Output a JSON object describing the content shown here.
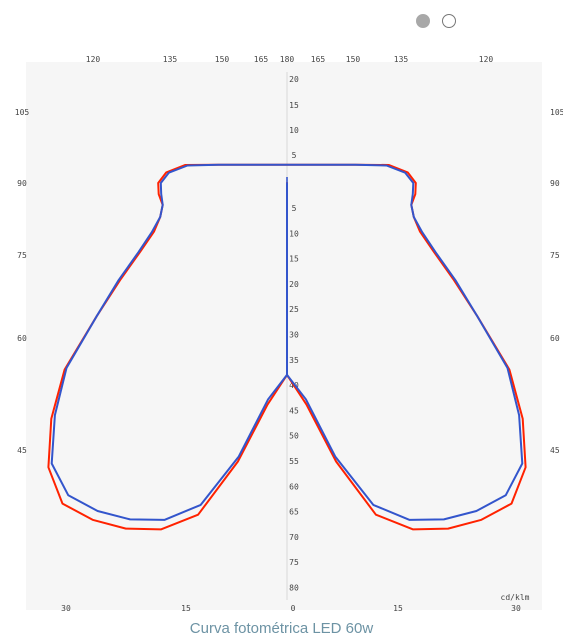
{
  "carousel": {
    "dots": [
      {
        "label": "slide-1",
        "active": true
      },
      {
        "label": "slide-2",
        "active": false
      }
    ]
  },
  "caption": "Curva fotométrica LED 60w",
  "chart_data": {
    "type": "polar",
    "unit_label": "cd/klm",
    "radial_axis": {
      "upper_ticks": [
        "20",
        "15",
        "10",
        "5"
      ],
      "lower_ticks": [
        "5",
        "10",
        "15",
        "20",
        "25",
        "30",
        "35",
        "40",
        "45",
        "50",
        "55",
        "60",
        "65",
        "70",
        "75",
        "80"
      ]
    },
    "top_angle_ticks": [
      "120",
      "135",
      "150",
      "165",
      "180",
      "165",
      "150",
      "135",
      "120"
    ],
    "side_angle_ticks_left": [
      "105",
      "90",
      "75",
      "60",
      "45"
    ],
    "side_angle_ticks_right": [
      "105",
      "90",
      "75",
      "60",
      "45"
    ],
    "bottom_angle_ticks": [
      "30",
      "15",
      "0",
      "15",
      "30"
    ],
    "series": [
      {
        "color": "#ff2200",
        "points": [
          [
            0,
            38
          ],
          [
            5,
            44
          ],
          [
            10,
            56
          ],
          [
            15,
            68
          ],
          [
            20,
            73
          ],
          [
            25,
            75.5
          ],
          [
            30,
            77
          ],
          [
            35,
            77.5
          ],
          [
            40,
            73.5
          ],
          [
            45,
            66
          ],
          [
            50,
            57.5
          ],
          [
            55,
            46
          ],
          [
            60,
            38
          ],
          [
            65,
            32
          ],
          [
            70,
            28
          ],
          [
            75,
            26
          ],
          [
            80,
            25
          ],
          [
            85,
            25.5
          ],
          [
            90,
            25.5
          ],
          [
            95,
            24
          ],
          [
            100,
            20.5
          ],
          [
            105,
            14
          ]
        ]
      },
      {
        "color": "#3355cc",
        "points": [
          [
            0,
            38
          ],
          [
            5,
            43
          ],
          [
            10,
            55
          ],
          [
            15,
            66
          ],
          [
            20,
            71
          ],
          [
            25,
            73.5
          ],
          [
            30,
            75
          ],
          [
            35,
            75.5
          ],
          [
            40,
            72.5
          ],
          [
            45,
            65
          ],
          [
            50,
            57
          ],
          [
            55,
            46
          ],
          [
            60,
            38.5
          ],
          [
            65,
            32.5
          ],
          [
            70,
            28.5
          ],
          [
            75,
            26
          ],
          [
            80,
            25
          ],
          [
            85,
            25
          ],
          [
            90,
            25
          ],
          [
            95,
            23.5
          ],
          [
            100,
            20
          ],
          [
            105,
            14
          ]
        ]
      }
    ]
  }
}
